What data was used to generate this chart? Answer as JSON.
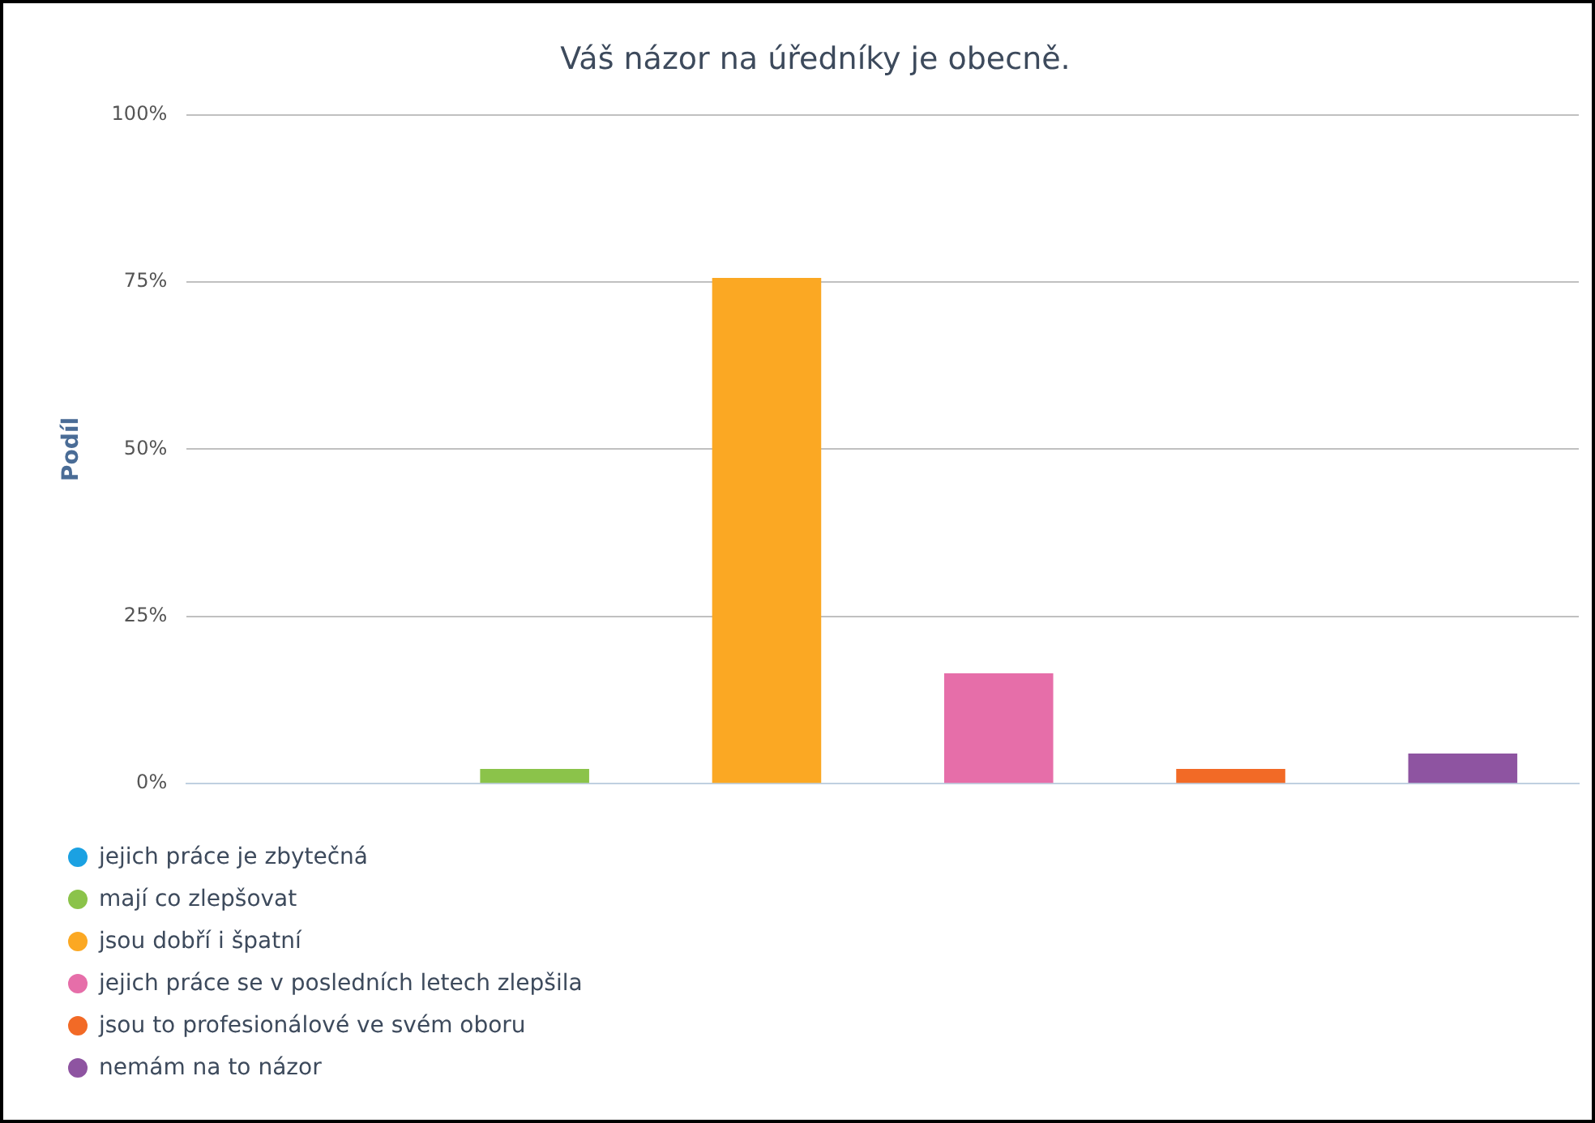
{
  "chart_data": {
    "type": "bar",
    "title": "Váš názor na úředníky je obecně.",
    "ylabel": "Podíl",
    "categories": [
      null,
      null,
      null,
      null,
      null,
      null
    ],
    "series": [
      {
        "name": "jejich práce je zbytečná",
        "color": "#1ba1e2",
        "values": [
          0,
          null,
          null,
          null,
          null,
          null
        ]
      },
      {
        "name": "mají co zlepšovat",
        "color": "#8bc34a",
        "values": [
          null,
          2.2,
          null,
          null,
          null,
          null
        ]
      },
      {
        "name": "jsou dobří i špatní",
        "color": "#fba823",
        "values": [
          null,
          null,
          75.6,
          null,
          null,
          null
        ]
      },
      {
        "name": "jejich práce se v posledních letech zlepšila",
        "color": "#e66ea9",
        "values": [
          null,
          null,
          null,
          16.5,
          null,
          null
        ]
      },
      {
        "name": "jsou to profesionálové ve svém oboru",
        "color": "#f26a26",
        "values": [
          null,
          null,
          null,
          null,
          2.2,
          null
        ]
      },
      {
        "name": "nemám na to názor",
        "color": "#8e54a1",
        "values": [
          null,
          null,
          null,
          null,
          null,
          4.5
        ]
      }
    ],
    "ylim": [
      0,
      100
    ],
    "yticks": [
      {
        "value": 0,
        "label": "0%"
      },
      {
        "value": 25,
        "label": "25%"
      },
      {
        "value": 50,
        "label": "50%"
      },
      {
        "value": 75,
        "label": "75%"
      },
      {
        "value": 100,
        "label": "100%"
      }
    ],
    "grid": "y",
    "legend": "bottom left"
  }
}
